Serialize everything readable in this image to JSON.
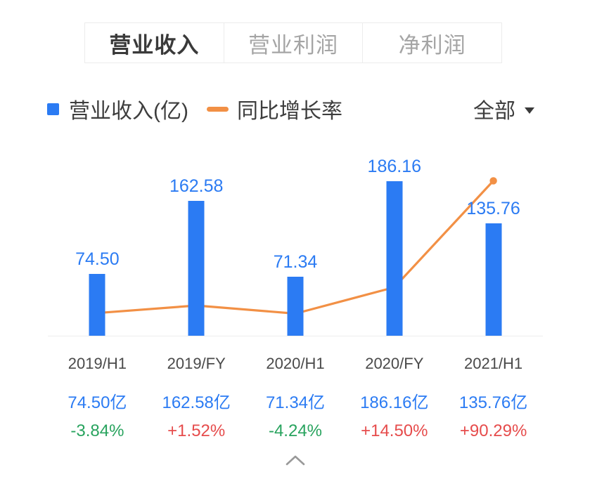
{
  "tabs": [
    {
      "id": "operating-revenue",
      "label": "营业收入",
      "active": true
    },
    {
      "id": "operating-profit",
      "label": "营业利润",
      "active": false
    },
    {
      "id": "net-profit",
      "label": "净利润",
      "active": false
    }
  ],
  "legend": {
    "bar_label": "营业收入(亿)",
    "line_label": "同比增长率",
    "filter_label": "全部"
  },
  "colors": {
    "accent_blue": "#2b7bf3",
    "line_orange": "#f29045",
    "growth_negative": "#28a35e",
    "growth_positive": "#e64c4c",
    "tab_active_text": "#3a3a3a",
    "tab_inactive_text": "#a5a5a5",
    "axis_label": "#4a4a4a",
    "legend_text": "#3d3d3d",
    "border": "#ececec",
    "baseline": "#ededed"
  },
  "chart_data": {
    "type": "bar",
    "title": "营业收入",
    "categories": [
      "2019/H1",
      "2019/FY",
      "2020/H1",
      "2020/FY",
      "2021/H1"
    ],
    "series": [
      {
        "name": "营业收入(亿)",
        "type": "bar",
        "unit": "亿",
        "values": [
          74.5,
          162.58,
          71.34,
          186.16,
          135.76
        ]
      },
      {
        "name": "同比增长率",
        "type": "line",
        "unit": "%",
        "values": [
          -3.84,
          1.52,
          -4.24,
          14.5,
          90.29
        ]
      }
    ],
    "bar_value_labels": [
      "74.50",
      "162.58",
      "71.34",
      "186.16",
      "135.76"
    ],
    "footer_values": [
      "74.50亿",
      "162.58亿",
      "71.34亿",
      "186.16亿",
      "135.76亿"
    ],
    "footer_growth": [
      "-3.84%",
      "+1.52%",
      "-4.24%",
      "+14.50%",
      "+90.29%"
    ],
    "legend_position": "top",
    "grid": false,
    "y_axis_visible": false,
    "x_axis_baseline": true
  },
  "footer": {
    "collapse_icon": "chevron-up"
  }
}
